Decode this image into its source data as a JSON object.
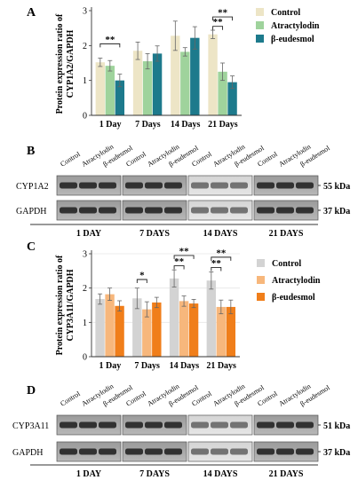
{
  "panels": {
    "a": "A",
    "b": "B",
    "c": "C",
    "d": "D"
  },
  "blot_b": {
    "columns": [
      "Control",
      "Atractylodin",
      "β-eudesmol"
    ],
    "rows": [
      {
        "name": "CYP1A2",
        "size": "55 kDa"
      },
      {
        "name": "GAPDH",
        "size": "37 kDa"
      }
    ],
    "groups": [
      "1 DAY",
      "7 DAYS",
      "14 DAYS",
      "21 DAYS"
    ]
  },
  "blot_d": {
    "columns": [
      "Control",
      "Atractylodin",
      "β-eudesmol"
    ],
    "rows": [
      {
        "name": "CYP3A11",
        "size": "51 kDa"
      },
      {
        "name": "GAPDH",
        "size": "37 kDa"
      }
    ],
    "groups": [
      "1 DAY",
      "7 DAYS",
      "14 DAYS",
      "21 DAYS"
    ]
  },
  "chart_data": [
    {
      "type": "bar",
      "panel": "A",
      "categories": [
        "1 Day",
        "7 Days",
        "14 Days",
        "21 Days"
      ],
      "ylabel": "Protein expression ratio of CYP1A2/GAPDH",
      "ylim": [
        0,
        3
      ],
      "yticks": [
        "0",
        "1",
        "2",
        "3"
      ],
      "series": [
        {
          "name": "Control",
          "color": "#EDE5C6",
          "values": [
            1.52,
            1.85,
            2.28,
            2.32
          ],
          "errors": [
            0.12,
            0.25,
            0.42,
            0.12
          ]
        },
        {
          "name": "Atractylodin",
          "color": "#9FD39C",
          "values": [
            1.42,
            1.55,
            1.82,
            1.25
          ],
          "errors": [
            0.15,
            0.22,
            0.12,
            0.25
          ]
        },
        {
          "name": "β-eudesmol",
          "color": "#1D7A8C",
          "values": [
            1.0,
            1.77,
            2.22,
            0.95
          ],
          "errors": [
            0.18,
            0.22,
            0.32,
            0.18
          ]
        }
      ],
      "significance": [
        {
          "category": "1 Day",
          "label": "**"
        },
        {
          "category": "21 Days",
          "label": "**"
        },
        {
          "category": "21 Days",
          "label": "**"
        }
      ],
      "legend": "top-right"
    },
    {
      "type": "bar",
      "panel": "C",
      "categories": [
        "1 Day",
        "7 Days",
        "14 Days",
        "21 Days"
      ],
      "ylabel": "Protein expression ratio of CYP3A11/GAPDH",
      "ylim": [
        0,
        3
      ],
      "yticks": [
        "0",
        "1",
        "2",
        "3"
      ],
      "grid": true,
      "series": [
        {
          "name": "Control",
          "color": "#D3D3D3",
          "values": [
            1.68,
            1.7,
            2.28,
            2.22
          ],
          "errors": [
            0.15,
            0.3,
            0.25,
            0.25
          ]
        },
        {
          "name": "Atractylodin",
          "color": "#F7B77C",
          "values": [
            1.82,
            1.38,
            1.62,
            1.45
          ],
          "errors": [
            0.18,
            0.22,
            0.15,
            0.2
          ]
        },
        {
          "name": "β-eudesmol",
          "color": "#F07E1A",
          "values": [
            1.48,
            1.58,
            1.55,
            1.45
          ],
          "errors": [
            0.15,
            0.15,
            0.12,
            0.2
          ]
        }
      ],
      "significance": [
        {
          "category": "7 Days",
          "label": "*"
        },
        {
          "category": "14 Days",
          "label": "**"
        },
        {
          "category": "14 Days",
          "label": "**"
        },
        {
          "category": "21 Days",
          "label": "**"
        },
        {
          "category": "21 Days",
          "label": "**"
        }
      ],
      "legend": "top-right"
    }
  ]
}
